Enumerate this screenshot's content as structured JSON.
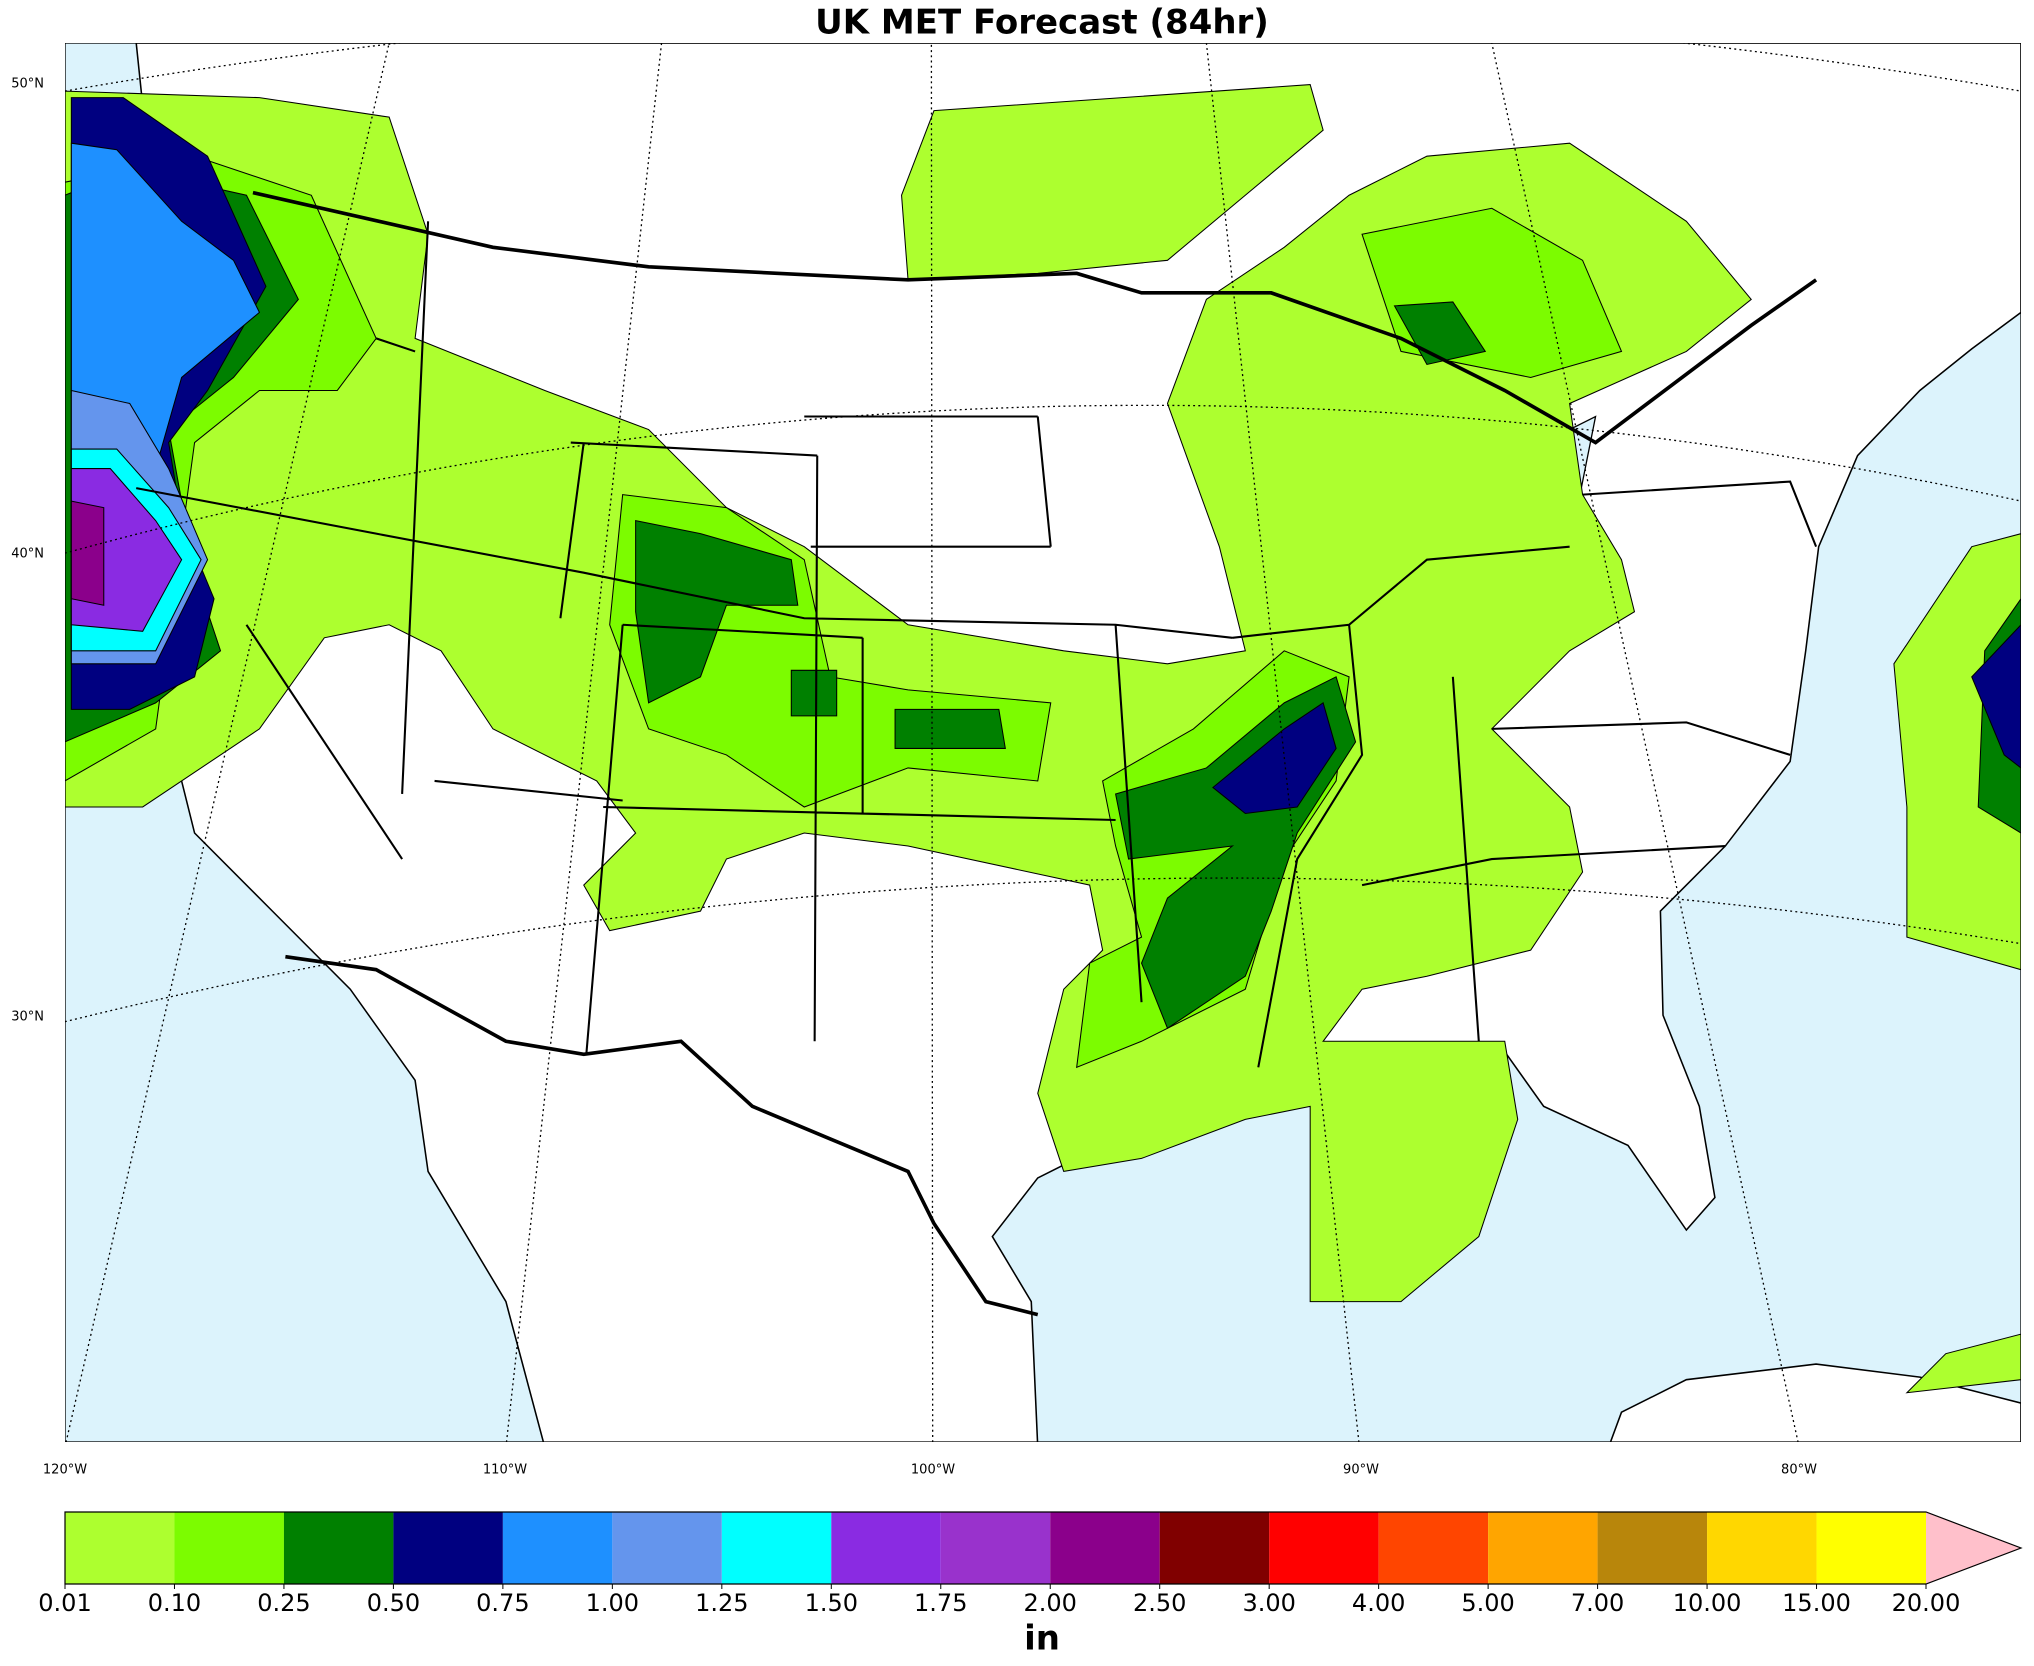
{
  "title": "UK MET Forecast (84hr)",
  "latitude_labels": [
    "50°N",
    "40°N",
    "30°N"
  ],
  "longitude_labels": [
    "120°W",
    "110°W",
    "100°W",
    "90°W",
    "80°W"
  ],
  "colorbar": {
    "ticks": [
      {
        "value": 0.01,
        "label": "0.01"
      },
      {
        "value": 0.1,
        "label": "0.10"
      },
      {
        "value": 0.25,
        "label": "0.25"
      },
      {
        "value": 0.5,
        "label": "0.50"
      },
      {
        "value": 0.75,
        "label": "0.75"
      },
      {
        "value": 1,
        "label": "1.00"
      },
      {
        "value": 1.25,
        "label": "1.25"
      },
      {
        "value": 1.5,
        "label": "1.50"
      },
      {
        "value": 1.75,
        "label": "1.75"
      },
      {
        "value": 2,
        "label": "2.00"
      },
      {
        "value": 2.5,
        "label": "2.50"
      },
      {
        "value": 3,
        "label": "3.00"
      },
      {
        "value": 4,
        "label": "4.00"
      },
      {
        "value": 5,
        "label": "5.00"
      },
      {
        "value": 7,
        "label": "7.00"
      },
      {
        "value": 10,
        "label": "10.00"
      },
      {
        "value": 15,
        "label": "15.00"
      },
      {
        "value": 20,
        "label": "20.00"
      }
    ],
    "colors": [
      "#adff2f",
      "#7cfc00",
      "#008000",
      "#000080",
      "#1e90ff",
      "#6495ed",
      "#00ffff",
      "#8a2be2",
      "#9932cc",
      "#8b008b",
      "#800000",
      "#ff0000",
      "#ff4500",
      "#ffa500",
      "#b8860b",
      "#ffd700",
      "#ffff00"
    ],
    "extend_color": "#ffc0cb",
    "unit_label": "in"
  }
}
